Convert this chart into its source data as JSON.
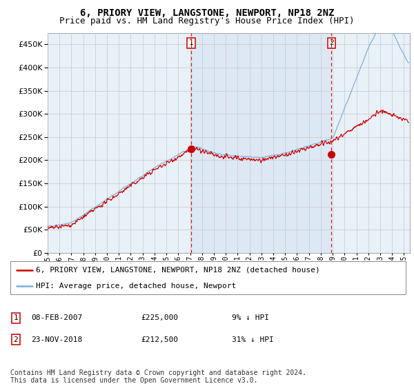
{
  "title": "6, PRIORY VIEW, LANGSTONE, NEWPORT, NP18 2NZ",
  "subtitle": "Price paid vs. HM Land Registry's House Price Index (HPI)",
  "ytick_values": [
    0,
    50000,
    100000,
    150000,
    200000,
    250000,
    300000,
    350000,
    400000,
    450000
  ],
  "ylim": [
    0,
    475000
  ],
  "xlim_start": 1995.0,
  "xlim_end": 2025.5,
  "hpi_color": "#7aadd4",
  "price_color": "#cc0000",
  "plot_bg_color": "#e8f0f8",
  "shade_color": "#dce8f5",
  "sale1_x": 2007.1,
  "sale1_y": 225000,
  "sale2_x": 2018.9,
  "sale2_y": 212500,
  "vline_color": "#cc2222",
  "legend_label_price": "6, PRIORY VIEW, LANGSTONE, NEWPORT, NP18 2NZ (detached house)",
  "legend_label_hpi": "HPI: Average price, detached house, Newport",
  "table_row1_num": "1",
  "table_row1_date": "08-FEB-2007",
  "table_row1_price": "£225,000",
  "table_row1_hpi": "9% ↓ HPI",
  "table_row2_num": "2",
  "table_row2_date": "23-NOV-2018",
  "table_row2_price": "£212,500",
  "table_row2_hpi": "31% ↓ HPI",
  "footnote": "Contains HM Land Registry data © Crown copyright and database right 2024.\nThis data is licensed under the Open Government Licence v3.0.",
  "title_fontsize": 10,
  "subtitle_fontsize": 9,
  "tick_fontsize": 7.5,
  "legend_fontsize": 8,
  "table_fontsize": 8,
  "footnote_fontsize": 7
}
